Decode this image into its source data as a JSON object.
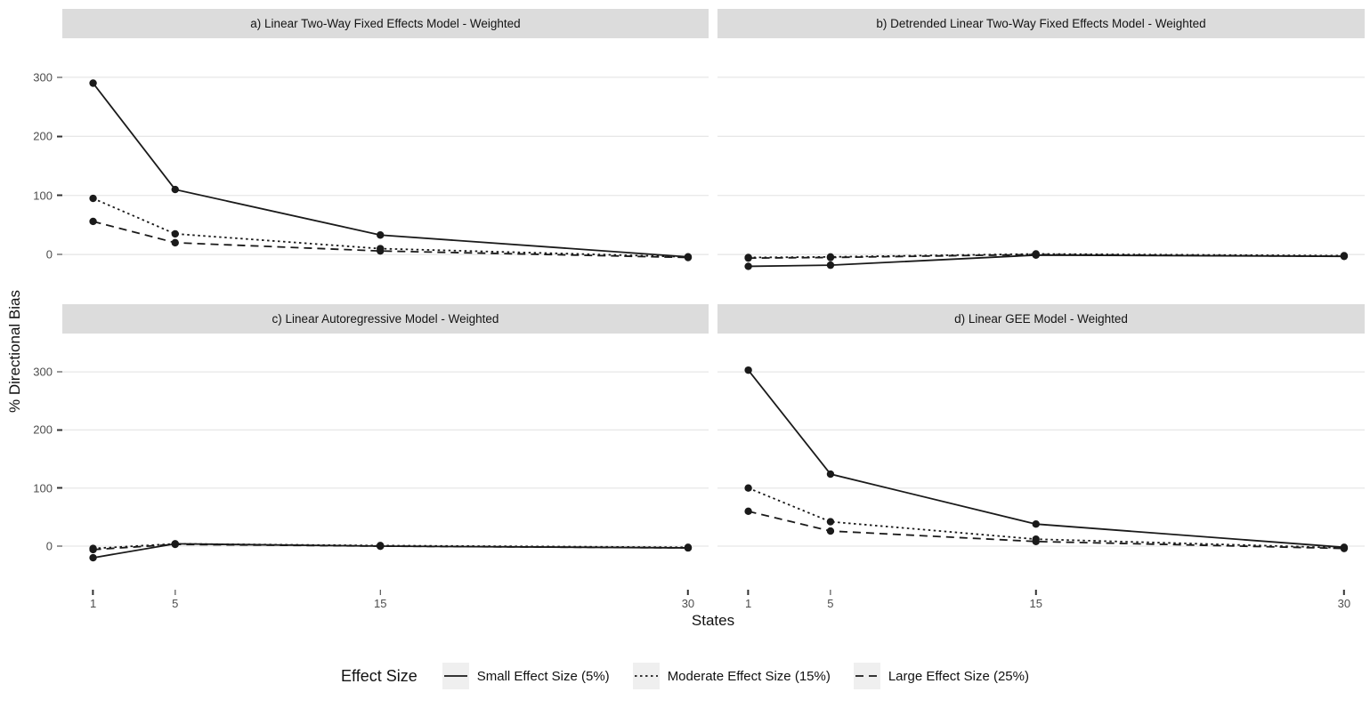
{
  "chart_data": {
    "type": "line",
    "x": [
      1,
      5,
      15,
      30
    ],
    "x_tick_labels": [
      "1",
      "5",
      "15",
      "30"
    ],
    "xlabel": "States",
    "ylabel": "% Directional Bias",
    "y_tick_values": [
      0,
      100,
      200,
      300
    ],
    "x_domain": [
      -0.5,
      31
    ],
    "y_domain": [
      -75,
      366
    ],
    "grid": "horizontal gridlines only",
    "legend_position": "bottom",
    "legend_title": "Effect Size",
    "series_defs": [
      {
        "name": "Small Effect Size (5%)",
        "style": "solid"
      },
      {
        "name": "Moderate Effect Size (15%)",
        "style": "dotted"
      },
      {
        "name": "Large Effect Size (25%)",
        "style": "dashed"
      }
    ],
    "panels": [
      {
        "label": "a) Linear Two-Way Fixed Effects Model - Weighted",
        "series_values": [
          [
            290,
            110,
            33,
            -4
          ],
          [
            95,
            35,
            10,
            -4
          ],
          [
            56,
            20,
            6,
            -5
          ]
        ]
      },
      {
        "label": "b) Detrended Linear Two-Way Fixed Effects Model - Weighted",
        "series_values": [
          [
            -20,
            -18,
            -1,
            -3
          ],
          [
            -5,
            -4,
            1,
            -2
          ],
          [
            -6,
            -5,
            0,
            -3
          ]
        ]
      },
      {
        "label": "c) Linear Autoregressive Model - Weighted",
        "series_values": [
          [
            -20,
            4,
            0,
            -3
          ],
          [
            -4,
            4,
            1,
            -2
          ],
          [
            -6,
            3,
            0,
            -3
          ]
        ]
      },
      {
        "label": "d) Linear GEE Model - Weighted",
        "series_values": [
          [
            303,
            124,
            38,
            -2
          ],
          [
            100,
            42,
            12,
            -3
          ],
          [
            60,
            26,
            8,
            -4
          ]
        ]
      }
    ],
    "colors": {
      "line": "#1a1a1a",
      "point": "#1a1a1a",
      "strip_bg": "#dcdcdc",
      "gridline": "#e7e7e7",
      "axis_text": "#4d4d4d"
    }
  }
}
